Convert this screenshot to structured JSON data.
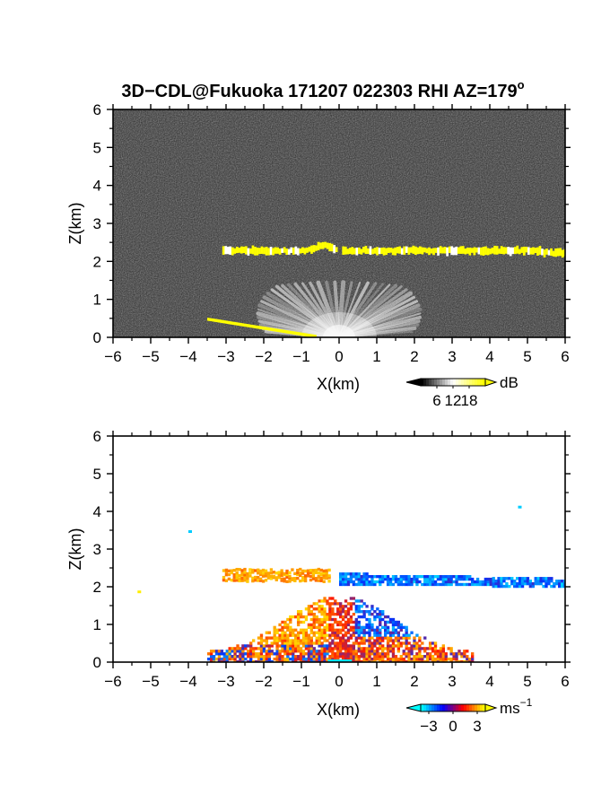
{
  "title": "3D−CDL@Fukuoka 171207 022303 RHI AZ=179",
  "title_degree": "o",
  "chart_data": [
    {
      "type": "heatmap",
      "panel": "reflectivity",
      "xlabel": "X(km)",
      "ylabel": "Z(km)",
      "xlim": [
        -6,
        6
      ],
      "ylim": [
        0,
        6
      ],
      "x_ticks": [
        "−6",
        "−5",
        "−4",
        "−3",
        "−2",
        "−1",
        "0",
        "1",
        "2",
        "3",
        "4",
        "5",
        "6"
      ],
      "y_ticks": [
        "0",
        "1",
        "2",
        "3",
        "4",
        "5",
        "6"
      ],
      "background_color": "#2a2a2a",
      "colorbar": {
        "unit": "dB",
        "ticks": [
          "6",
          "12",
          "18"
        ],
        "values": [
          6,
          12,
          18
        ],
        "colors": [
          "#000000",
          "#ffffff",
          "#ffff00"
        ]
      },
      "features": {
        "cloud_layer": {
          "x_range": [
            -3.1,
            6.0
          ],
          "z_center": 2.28,
          "thickness_km": 0.18,
          "color": "#ffff00",
          "peak_x": -0.45,
          "peak_z": 2.55,
          "notch_x": 0.0
        },
        "near_field_fan": {
          "origin_x": 0.0,
          "radius_km": 3.2,
          "max_height_km": 1.45,
          "color": "#e8e8e8"
        },
        "ground_clutter": {
          "x_range": [
            -3.5,
            -0.6
          ],
          "z_range": [
            0.48,
            0.02
          ],
          "color": "#ffff00"
        }
      }
    },
    {
      "type": "heatmap",
      "panel": "doppler_velocity",
      "xlabel": "X(km)",
      "ylabel": "Z(km)",
      "xlim": [
        -6,
        6
      ],
      "ylim": [
        0,
        6
      ],
      "x_ticks": [
        "−6",
        "−5",
        "−4",
        "−3",
        "−2",
        "−1",
        "0",
        "1",
        "2",
        "3",
        "4",
        "5",
        "6"
      ],
      "y_ticks": [
        "0",
        "1",
        "2",
        "3",
        "4",
        "5",
        "6"
      ],
      "colorbar": {
        "unit": "ms",
        "unit_exp": "−1",
        "ticks": [
          "−3",
          "0",
          "3"
        ],
        "values": [
          -3,
          0,
          3
        ],
        "colors": [
          "#00ffff",
          "#0000ff",
          "#ff0000",
          "#ffff00"
        ]
      },
      "features": {
        "cloud_layer_left": {
          "x_range": [
            -3.1,
            -0.3
          ],
          "z_range": [
            2.2,
            2.5
          ],
          "color": "#ff9900"
        },
        "cloud_layer_right": {
          "x_range": [
            0.0,
            6.0
          ],
          "z_range": [
            2.1,
            2.4
          ],
          "color": "#3399ff"
        },
        "lower_mixed": {
          "x_range": [
            -3.5,
            3.5
          ],
          "z_range": [
            0.05,
            1.6
          ]
        },
        "isolated_points": [
          [
            -4.0,
            3.5
          ],
          [
            4.75,
            4.15
          ],
          [
            -5.35,
            1.9
          ]
        ]
      }
    }
  ]
}
